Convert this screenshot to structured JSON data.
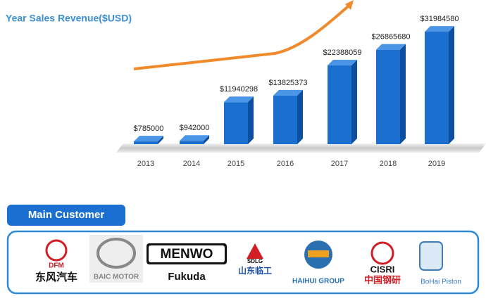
{
  "chart_data": {
    "type": "bar3d",
    "title": "Year Sales Revenue($USD)",
    "categories": [
      "2013",
      "2014",
      "2015",
      "2016",
      "2017",
      "2018",
      "2019"
    ],
    "values": [
      785000,
      942000,
      11940298,
      13825373,
      22388059,
      26865680,
      31984580
    ],
    "value_labels": [
      "$785000",
      "$942000",
      "$11940298",
      "$13825373",
      "$22388059",
      "$26865680",
      "$31984580"
    ],
    "color": "#1a6fd1",
    "ylim": [
      0,
      32000000
    ]
  },
  "main_customer": {
    "title": "Main Customer",
    "customers": [
      {
        "mark": "DFM",
        "label": "东风汽车"
      },
      {
        "label": "BAIC MOTOR"
      },
      {
        "mark": "MENWO",
        "label": "Fukuda"
      },
      {
        "mark": "SDLG",
        "label": "山东临工"
      },
      {
        "label": "HAIHUI GROUP"
      },
      {
        "mark": "CISRI",
        "label": "中国钢研"
      },
      {
        "label": "BoHai Piston"
      }
    ]
  }
}
